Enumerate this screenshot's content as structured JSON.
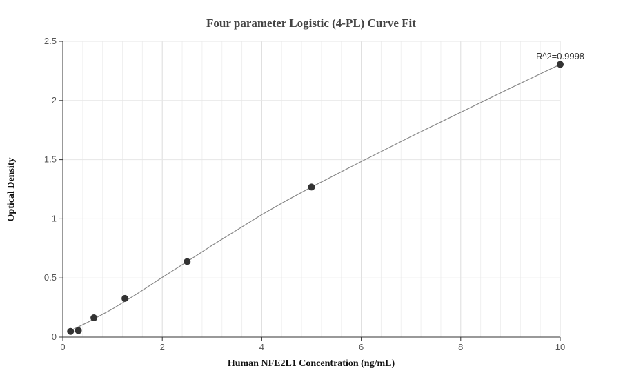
{
  "chart_data": {
    "type": "scatter",
    "title": "Four parameter Logistic (4-PL) Curve Fit",
    "xlabel": "Human NFE2L1 Concentration (ng/mL)",
    "ylabel": "Optical Density",
    "xlim": [
      0,
      10
    ],
    "ylim": [
      0,
      2.5
    ],
    "x_ticks": [
      "0",
      "2",
      "4",
      "6",
      "8",
      "10"
    ],
    "y_ticks": [
      "0",
      "0.5",
      "1",
      "1.5",
      "2",
      "2.5"
    ],
    "grid": true,
    "legend": "none",
    "series": [
      {
        "x": [
          0.156,
          0.313,
          0.625,
          1.25,
          2.5,
          5,
          10
        ],
        "values": [
          0.048,
          0.055,
          0.163,
          0.327,
          0.638,
          1.268,
          2.305
        ]
      }
    ],
    "fit_curve": {
      "x": [
        0.156,
        0.5,
        1,
        1.5,
        2,
        2.5,
        3,
        3.5,
        4,
        4.5,
        5,
        6,
        7,
        8,
        9,
        10
      ],
      "values": [
        0.055,
        0.125,
        0.238,
        0.368,
        0.505,
        0.638,
        0.775,
        0.905,
        1.035,
        1.155,
        1.268,
        1.484,
        1.695,
        1.9,
        2.105,
        2.305
      ]
    },
    "annotation": "R^2=0.9998",
    "colors": {
      "point": "#333333",
      "curve": "#888888",
      "grid": "#e6e6e6"
    }
  }
}
